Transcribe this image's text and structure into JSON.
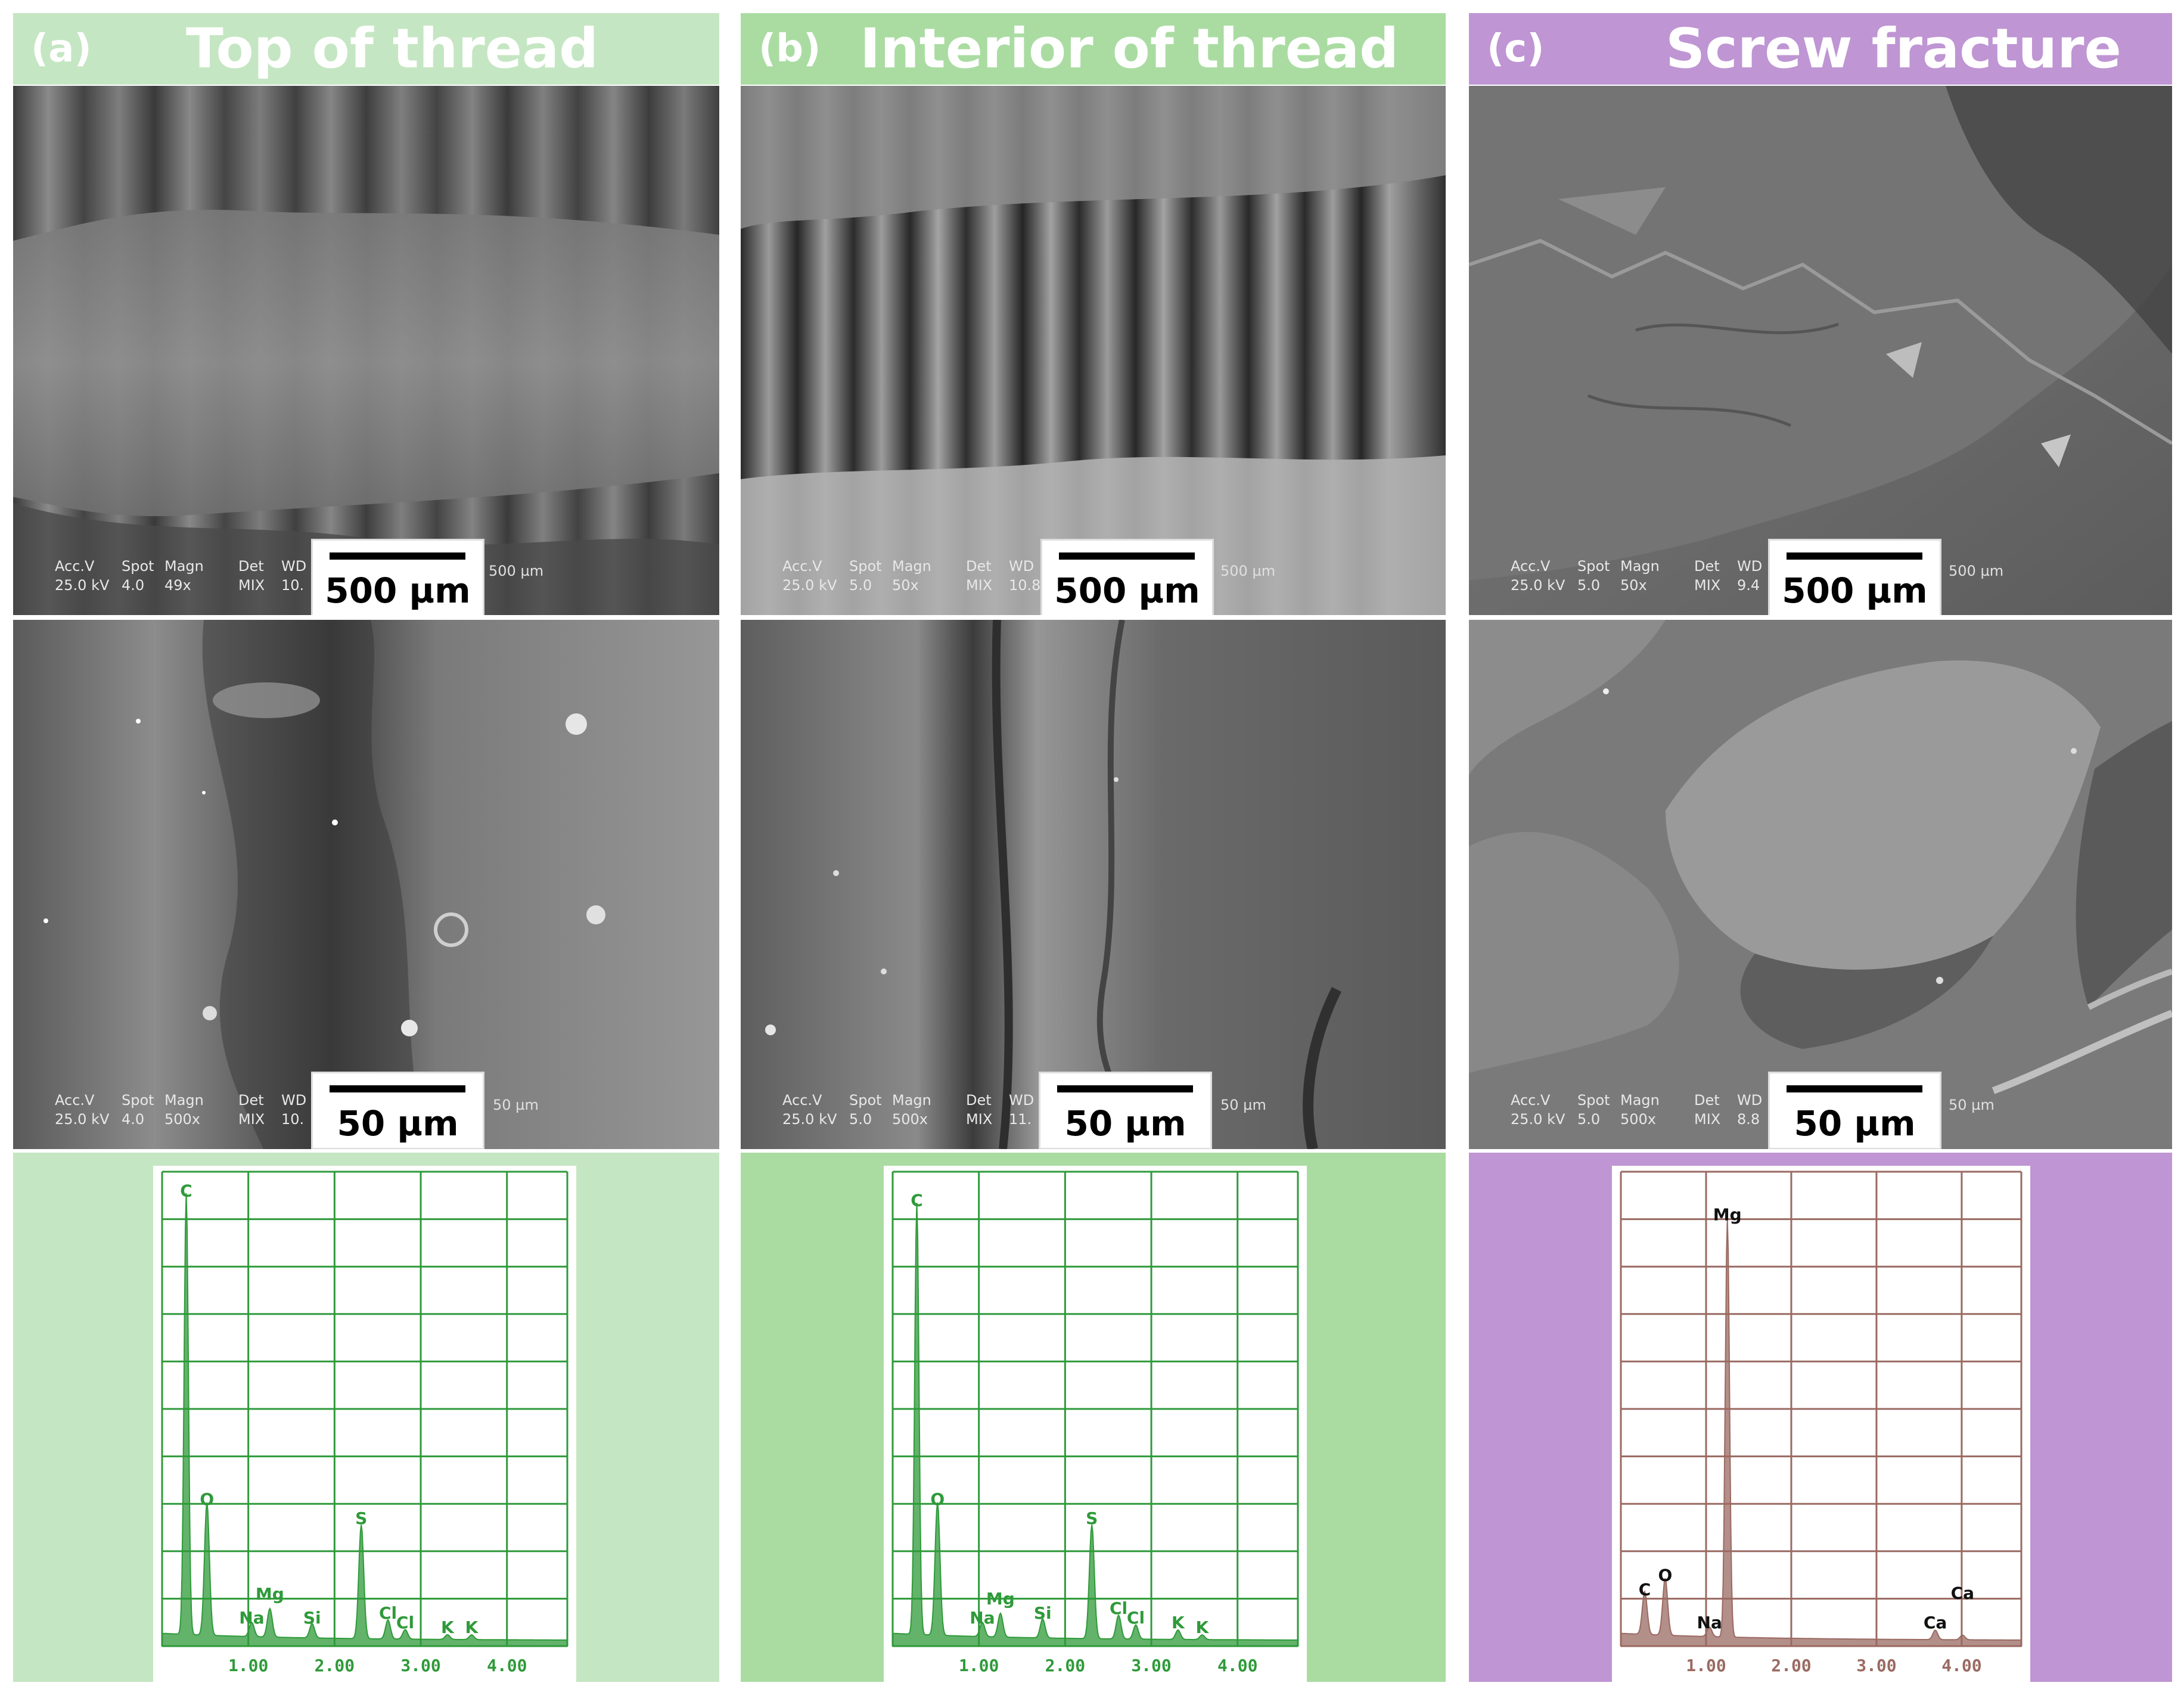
{
  "colors": {
    "green_light": "#c5e6c2",
    "green_mid": "#aadca2",
    "purple": "#bf95d3",
    "eds_green": "#2f9a3a",
    "eds_brown": "#9a6a62"
  },
  "panels": [
    {
      "id": "a",
      "letter": "(a)",
      "title": "Top of thread",
      "header_color": "#c5e6c2",
      "eds_bg": "#c5e6c2",
      "low_mag": {
        "meta_header": [
          "Acc.V",
          "Spot",
          "Magn",
          "Det",
          "WD"
        ],
        "meta_values": [
          "25.0 kV",
          "4.0",
          "49x",
          "MIX",
          "10."
        ],
        "micro": "500 µm",
        "scale": "500 µm"
      },
      "high_mag": {
        "meta_header": [
          "Acc.V",
          "Spot",
          "Magn",
          "Det",
          "WD"
        ],
        "meta_values": [
          "25.0 kV",
          "4.0",
          "500x",
          "MIX",
          "10."
        ],
        "micro": "50 µm",
        "scale": "50 µm"
      }
    },
    {
      "id": "b",
      "letter": "(b)",
      "title": "Interior of thread",
      "header_color": "#aadca2",
      "eds_bg": "#aadca2",
      "low_mag": {
        "meta_header": [
          "Acc.V",
          "Spot",
          "Magn",
          "Det",
          "WD"
        ],
        "meta_values": [
          "25.0 kV",
          "5.0",
          "50x",
          "MIX",
          "10.8"
        ],
        "micro": "500 µm",
        "scale": "500 µm"
      },
      "high_mag": {
        "meta_header": [
          "Acc.V",
          "Spot",
          "Magn",
          "Det",
          "WD"
        ],
        "meta_values": [
          "25.0 kV",
          "5.0",
          "500x",
          "MIX",
          "11."
        ],
        "micro": "50 µm",
        "scale": "50 µm"
      }
    },
    {
      "id": "c",
      "letter": "(c)",
      "title": "Screw fracture",
      "header_color": "#bf95d3",
      "eds_bg": "#bf95d3",
      "low_mag": {
        "meta_header": [
          "Acc.V",
          "Spot",
          "Magn",
          "Det",
          "WD"
        ],
        "meta_values": [
          "25.0 kV",
          "5.0",
          "50x",
          "MIX",
          "9.4"
        ],
        "micro": "500 µm",
        "scale": "500 µm"
      },
      "high_mag": {
        "meta_header": [
          "Acc.V",
          "Spot",
          "Magn",
          "Det",
          "WD"
        ],
        "meta_values": [
          "25.0 kV",
          "5.0",
          "500x",
          "MIX",
          "8.8"
        ],
        "micro": "50 µm",
        "scale": "50 µm"
      }
    }
  ],
  "chart_data": [
    {
      "type": "area",
      "panel": "a",
      "color": "#2f9a3a",
      "x_ticks": [
        "1.00",
        "2.00",
        "3.00",
        "4.00"
      ],
      "xlim": [
        0,
        4.7
      ],
      "ylim": [
        0,
        100
      ],
      "grid": true,
      "peaks": [
        {
          "label": "C",
          "x": 0.28,
          "y": 93
        },
        {
          "label": "O",
          "x": 0.52,
          "y": 28
        },
        {
          "label": "Na",
          "x": 1.04,
          "y": 3
        },
        {
          "label": "Mg",
          "x": 1.25,
          "y": 6
        },
        {
          "label": "Si",
          "x": 1.74,
          "y": 3
        },
        {
          "label": "S",
          "x": 2.31,
          "y": 24
        },
        {
          "label": "Cl",
          "x": 2.62,
          "y": 4
        },
        {
          "label": "Cl",
          "x": 2.82,
          "y": 2
        },
        {
          "label": "K",
          "x": 3.31,
          "y": 1
        },
        {
          "label": "K",
          "x": 3.59,
          "y": 1
        }
      ]
    },
    {
      "type": "area",
      "panel": "b",
      "color": "#2f9a3a",
      "x_ticks": [
        "1.00",
        "2.00",
        "3.00",
        "4.00"
      ],
      "xlim": [
        0,
        4.7
      ],
      "ylim": [
        0,
        100
      ],
      "grid": true,
      "peaks": [
        {
          "label": "C",
          "x": 0.28,
          "y": 91
        },
        {
          "label": "O",
          "x": 0.52,
          "y": 28
        },
        {
          "label": "Na",
          "x": 1.04,
          "y": 3
        },
        {
          "label": "Mg",
          "x": 1.25,
          "y": 5
        },
        {
          "label": "Si",
          "x": 1.74,
          "y": 4
        },
        {
          "label": "S",
          "x": 2.31,
          "y": 24
        },
        {
          "label": "Cl",
          "x": 2.62,
          "y": 5
        },
        {
          "label": "Cl",
          "x": 2.82,
          "y": 3
        },
        {
          "label": "K",
          "x": 3.31,
          "y": 2
        },
        {
          "label": "K",
          "x": 3.59,
          "y": 1
        }
      ]
    },
    {
      "type": "area",
      "panel": "c",
      "color": "#9a6a62",
      "x_ticks": [
        "1.00",
        "2.00",
        "3.00",
        "4.00"
      ],
      "xlim": [
        0,
        4.7
      ],
      "ylim": [
        0,
        100
      ],
      "grid": true,
      "peaks": [
        {
          "label": "C",
          "x": 0.28,
          "y": 9
        },
        {
          "label": "O",
          "x": 0.52,
          "y": 12
        },
        {
          "label": "Na",
          "x": 1.04,
          "y": 2
        },
        {
          "label": "Mg",
          "x": 1.25,
          "y": 88
        },
        {
          "label": "Ca",
          "x": 3.69,
          "y": 2
        },
        {
          "label": "Ca",
          "x": 4.01,
          "y": 1
        }
      ]
    }
  ]
}
